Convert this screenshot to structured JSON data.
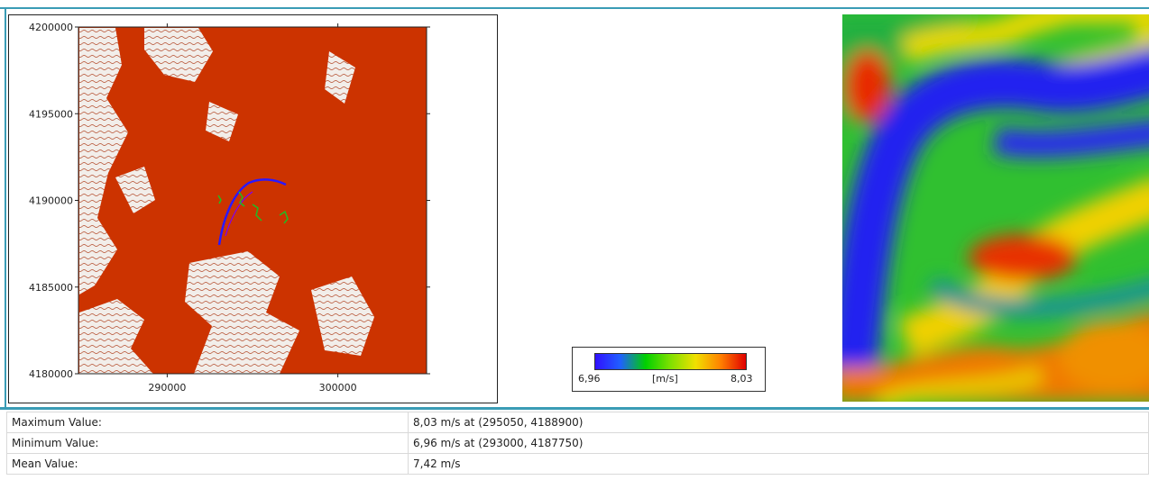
{
  "theme": {
    "frame_color": "#3a9cb5",
    "terrain_color": "#cc3300",
    "background": "#ffffff"
  },
  "map": {
    "y_ticks": [
      "4200000",
      "4195000",
      "4190000",
      "4185000",
      "4180000"
    ],
    "x_ticks": [
      "290000",
      "300000"
    ],
    "x_range": [
      284800,
      305200
    ],
    "y_range": [
      4180000,
      4200000
    ]
  },
  "legend": {
    "min_label": "6,96",
    "unit_label": "[m/s]",
    "max_label": "8,03",
    "colors": [
      "#3010ff",
      "#2060ff",
      "#00d000",
      "#80e000",
      "#f0e000",
      "#ff8000",
      "#e00000"
    ]
  },
  "heatmap": {
    "colors": [
      "#2020f0",
      "#10b020",
      "#40d020",
      "#e8d000",
      "#f08000",
      "#e02000"
    ]
  },
  "stats": {
    "rows": [
      {
        "label": "Maximum Value:",
        "value": "8,03 m/s at (295050, 4188900)"
      },
      {
        "label": "Minimum Value:",
        "value": "6,96 m/s at (293000, 4187750)"
      },
      {
        "label": "Mean Value:",
        "value": "7,42 m/s"
      }
    ]
  }
}
